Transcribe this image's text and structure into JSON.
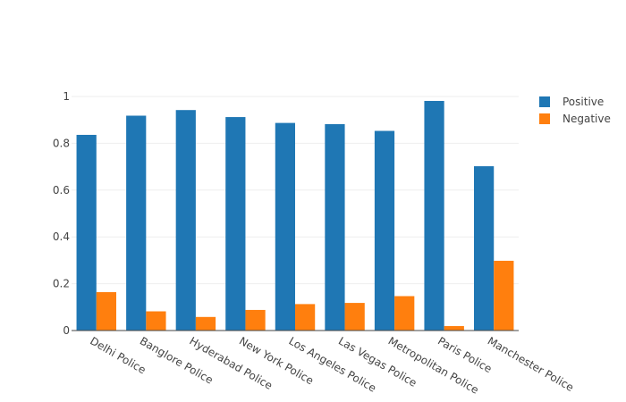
{
  "chart_data": {
    "type": "bar",
    "categories": [
      "Delhi Police",
      "Banglore Police",
      "Hyderabad Police",
      "New York Police",
      "Los Angeles Police",
      "Las Vegas Police",
      "Metropolitan Police",
      "Paris Police",
      "Manchester Police"
    ],
    "series": [
      {
        "name": "Positive",
        "color": "#1f77b4",
        "values": [
          0.836,
          0.918,
          0.942,
          0.912,
          0.887,
          0.882,
          0.853,
          0.981,
          0.702
        ]
      },
      {
        "name": "Negative",
        "color": "#ff7f0e",
        "values": [
          0.164,
          0.082,
          0.058,
          0.088,
          0.113,
          0.118,
          0.147,
          0.019,
          0.298
        ]
      }
    ],
    "yticks": [
      "0",
      "0.2",
      "0.4",
      "0.6",
      "0.8",
      "1"
    ],
    "ylim": [
      0,
      1
    ],
    "grid": true,
    "legend_position": "top-right"
  }
}
